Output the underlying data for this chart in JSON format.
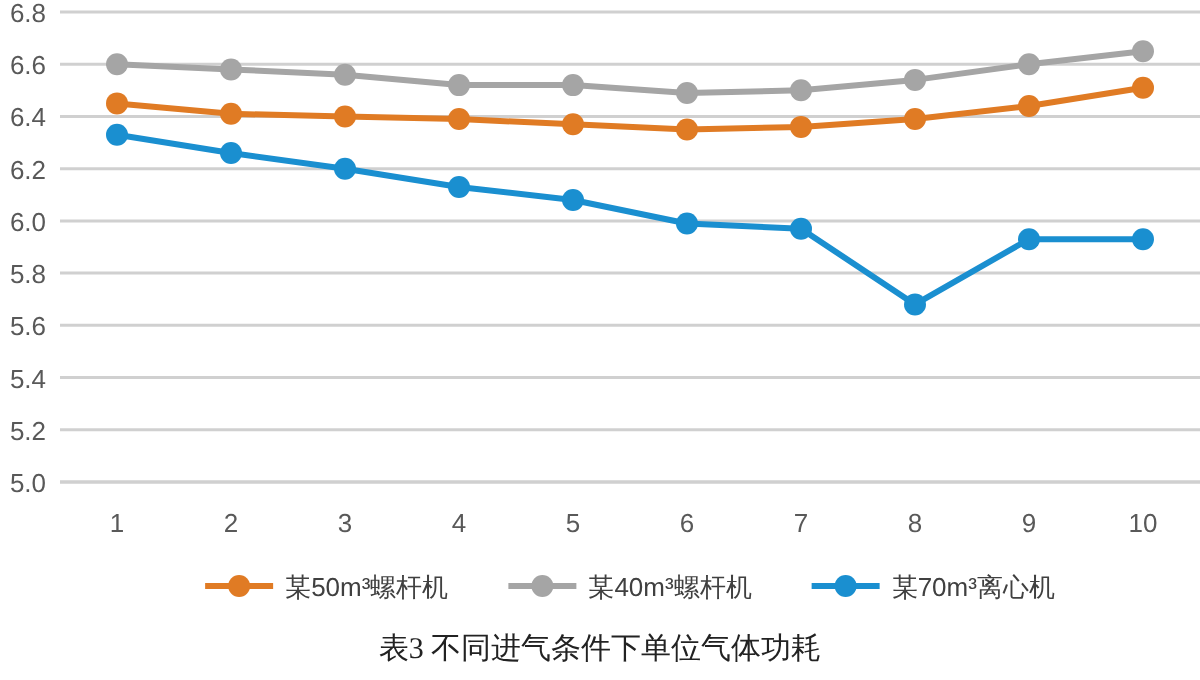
{
  "chart_data": {
    "type": "line",
    "title": "表3  不同进气条件下单位气体功耗",
    "categories": [
      "1",
      "2",
      "3",
      "4",
      "5",
      "6",
      "7",
      "8",
      "9",
      "10"
    ],
    "ylim": [
      5.0,
      6.8
    ],
    "yticks": [
      {
        "value": 5.0,
        "label": "5.0"
      },
      5.2,
      5.4,
      5.6,
      5.8,
      {
        "value": 6.0,
        "label": "6.0"
      },
      6.2,
      6.4,
      6.6,
      6.8
    ],
    "grid": "y",
    "legend": "bottom",
    "marker": "circle",
    "series": [
      {
        "name": "某50m³螺杆机",
        "color": "#e07b24",
        "values": [
          6.45,
          6.41,
          6.4,
          6.39,
          6.37,
          6.35,
          6.36,
          6.39,
          6.44,
          6.51
        ]
      },
      {
        "name": "某40m³螺杆机",
        "color": "#a5a5a5",
        "values": [
          6.6,
          6.58,
          6.56,
          6.52,
          6.52,
          6.49,
          6.5,
          6.54,
          6.6,
          6.65
        ]
      },
      {
        "name": "某70m³离心机",
        "color": "#1a8fd0",
        "values": [
          6.33,
          6.26,
          6.2,
          6.13,
          6.08,
          5.99,
          5.97,
          5.68,
          5.93,
          5.93
        ]
      }
    ]
  }
}
